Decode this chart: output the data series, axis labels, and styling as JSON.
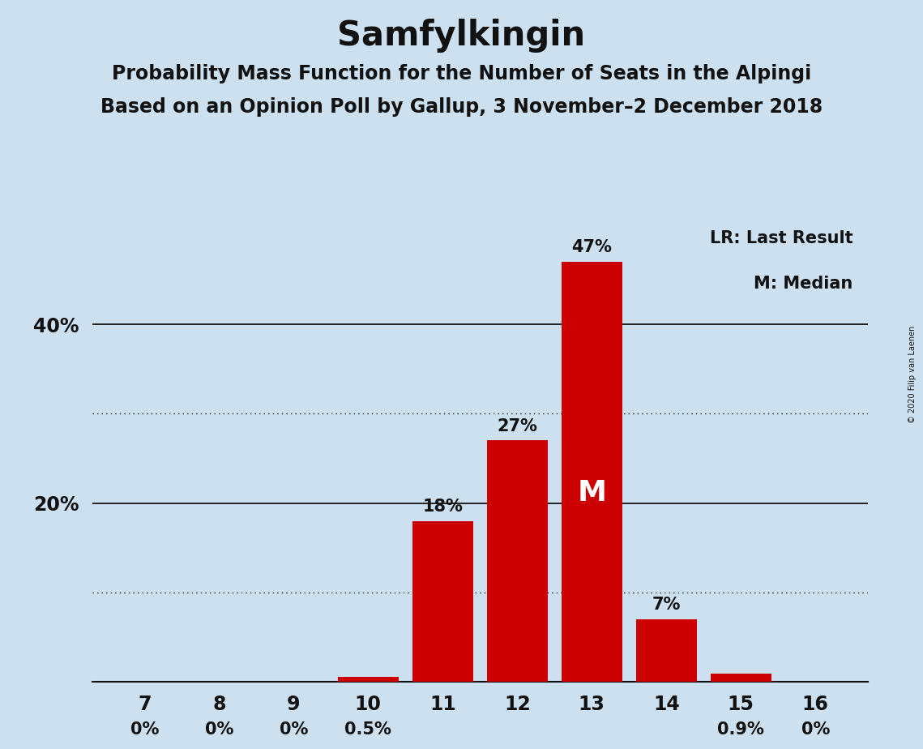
{
  "title": "Samfylkingin",
  "subtitle1": "Probability Mass Function for the Number of Seats in the Alpingi",
  "subtitle2": "Based on an Opinion Poll by Gallup, 3 November–2 December 2018",
  "copyright": "© 2020 Filip van Laenen",
  "categories": [
    7,
    8,
    9,
    10,
    11,
    12,
    13,
    14,
    15,
    16
  ],
  "values": [
    0.0,
    0.0,
    0.0,
    0.5,
    18.0,
    27.0,
    47.0,
    7.0,
    0.9,
    0.0
  ],
  "bar_color": "#cc0000",
  "background_color": "#cce0f0",
  "bar_labels": [
    "0%",
    "0%",
    "0%",
    "0.5%",
    "18%",
    "27%",
    "47%",
    "7%",
    "0.9%",
    "0%"
  ],
  "lr_seat": 7,
  "lr_label": "LR",
  "median_seat": 13,
  "median_label": "M",
  "ylim": [
    0,
    52
  ],
  "yticks": [
    20,
    40
  ],
  "ytick_labels": [
    "20%",
    "40%"
  ],
  "solid_gridlines": [
    20,
    40
  ],
  "dotted_gridlines": [
    10,
    30
  ],
  "legend_text1": "LR: Last Result",
  "legend_text2": "M: Median",
  "title_fontsize": 30,
  "subtitle_fontsize": 17,
  "bar_label_fontsize": 15,
  "axis_tick_fontsize": 17,
  "legend_fontsize": 15
}
